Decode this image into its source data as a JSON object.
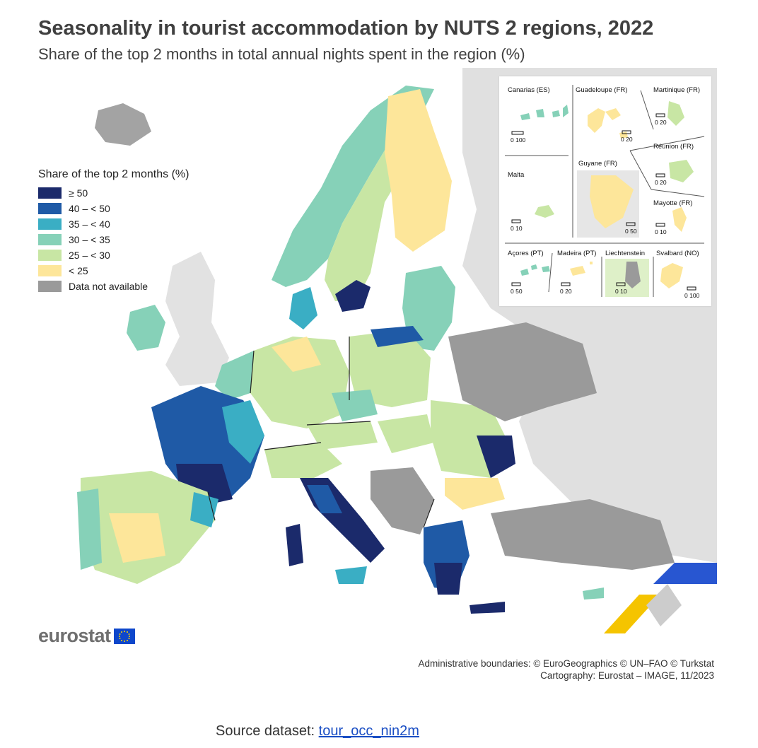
{
  "title": "Seasonality in tourist accommodation by NUTS 2 regions, 2022",
  "subtitle": "Share of the top 2 months in total annual nights spent in the region (%)",
  "legend": {
    "title": "Share of the top 2 months (%)",
    "items": [
      {
        "label": "≥ 50",
        "color": "#1b2a6b"
      },
      {
        "label": "40 – < 50",
        "color": "#1f5aa6"
      },
      {
        "label": "35 – < 40",
        "color": "#3aaec4"
      },
      {
        "label": "30 – < 35",
        "color": "#86d1b8"
      },
      {
        "label": "25 – < 30",
        "color": "#c8e6a4"
      },
      {
        "label": "< 25",
        "color": "#fde69a"
      },
      {
        "label": "Data not available",
        "color": "#9a9a9a"
      }
    ]
  },
  "insets": {
    "canarias": {
      "label": "Canarias (ES)",
      "scale": "0   100"
    },
    "guadeloupe": {
      "label": "Guadeloupe (FR)",
      "scale": "0  20"
    },
    "martinique": {
      "label": "Martinique (FR)",
      "scale": "0  20"
    },
    "reunion": {
      "label": "Réunion (FR)",
      "scale": "0  20"
    },
    "guyane": {
      "label": "Guyane (FR)",
      "scale": "0 50"
    },
    "malta": {
      "label": "Malta",
      "scale": "0  10"
    },
    "mayotte": {
      "label": "Mayotte (FR)",
      "scale": "0  10"
    },
    "acores": {
      "label": "Açores (PT)",
      "scale": "0  50"
    },
    "madeira": {
      "label": "Madeira (PT)",
      "scale": "0  20"
    },
    "liechtenstein": {
      "label": "Liechtenstein",
      "scale": "0   10"
    },
    "svalbard": {
      "label": "Svalbard (NO)",
      "scale": "0 100"
    }
  },
  "logo": {
    "text": "eurostat"
  },
  "credits": {
    "line1": "Administrative boundaries: © EuroGeographics © UN–FAO © Turkstat",
    "line2": "Cartography: Eurostat – IMAGE, 11/2023"
  },
  "source": {
    "prefix": "Source dataset: ",
    "link_text": "tour_occ_nin2m"
  }
}
